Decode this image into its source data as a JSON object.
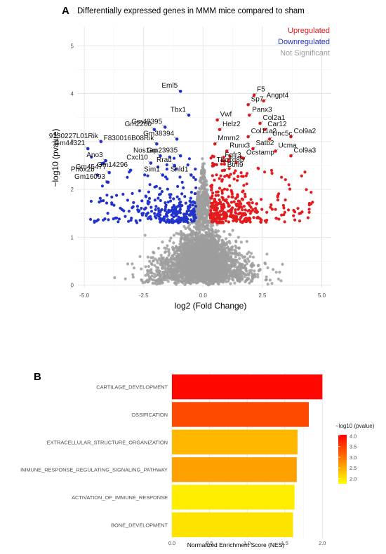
{
  "panel_a": {
    "letter": "A",
    "title": "Differentially expressed genes in MMM mice compared to sham"
  },
  "panel_b": {
    "letter": "B"
  },
  "chart_data": [
    {
      "type": "scatter",
      "title": "Differentially expressed genes in MMM mice compared to sham",
      "xlabel": "log2 (Fold Change)",
      "ylabel": "−log10 (pvalue)",
      "xlim": [
        -5.3,
        5.4
      ],
      "ylim": [
        -0.05,
        5.4
      ],
      "xticks": [
        -5.0,
        -2.5,
        0.0,
        2.5,
        5.0
      ],
      "xtick_labels": [
        "-5.0",
        "-2.5",
        "0.0",
        "2.5",
        "5.0"
      ],
      "yticks": [
        0,
        1,
        2,
        3,
        4,
        5
      ],
      "grid": true,
      "legend": "top-right",
      "series": [
        {
          "name": "Upregulated",
          "color": "#e41a1c"
        },
        {
          "name": "Downregulated",
          "color": "#2233cc"
        },
        {
          "name": "Not Significant",
          "color": "#9e9e9e"
        }
      ],
      "labeled_genes": [
        {
          "gene": "F5",
          "x": 2.15,
          "y": 3.97,
          "group": "Upregulated"
        },
        {
          "gene": "Sp7",
          "x": 1.9,
          "y": 3.77,
          "group": "Upregulated"
        },
        {
          "gene": "Angpt4",
          "x": 2.55,
          "y": 3.85,
          "group": "Upregulated"
        },
        {
          "gene": "Panx3",
          "x": 1.95,
          "y": 3.55,
          "group": "Upregulated"
        },
        {
          "gene": "Col2a1",
          "x": 2.4,
          "y": 3.38,
          "group": "Upregulated"
        },
        {
          "gene": "Car12",
          "x": 2.6,
          "y": 3.25,
          "group": "Upregulated"
        },
        {
          "gene": "Unc5c",
          "x": 2.8,
          "y": 3.05,
          "group": "Upregulated"
        },
        {
          "gene": "Col11a2",
          "x": 1.9,
          "y": 3.1,
          "group": "Upregulated"
        },
        {
          "gene": "Col9a2",
          "x": 3.7,
          "y": 3.1,
          "group": "Upregulated"
        },
        {
          "gene": "Satb2",
          "x": 2.1,
          "y": 2.85,
          "group": "Upregulated"
        },
        {
          "gene": "Ucma",
          "x": 3.05,
          "y": 2.8,
          "group": "Upregulated"
        },
        {
          "gene": "Col9a3",
          "x": 3.7,
          "y": 2.7,
          "group": "Upregulated"
        },
        {
          "gene": "Ocstamp",
          "x": 1.7,
          "y": 2.65,
          "group": "Upregulated"
        },
        {
          "gene": "Vwf",
          "x": 0.6,
          "y": 3.45,
          "group": "Upregulated"
        },
        {
          "gene": "Helz2",
          "x": 0.7,
          "y": 3.25,
          "group": "Upregulated"
        },
        {
          "gene": "Mmrn2",
          "x": 0.5,
          "y": 2.95,
          "group": "Upregulated"
        },
        {
          "gene": "Runx3",
          "x": 1.0,
          "y": 2.8,
          "group": "Upregulated"
        },
        {
          "gene": "Fgfr3",
          "x": 0.8,
          "y": 2.6,
          "group": "Upregulated"
        },
        {
          "gene": "Btnl9",
          "x": 0.9,
          "y": 2.4,
          "group": "Upregulated"
        },
        {
          "gene": "Tbc1d8b",
          "x": 0.45,
          "y": 2.5,
          "group": "Upregulated"
        },
        {
          "gene": "Eml5",
          "x": -0.95,
          "y": 4.05,
          "group": "Downregulated"
        },
        {
          "gene": "Tbx1",
          "x": -0.6,
          "y": 3.55,
          "group": "Downregulated"
        },
        {
          "gene": "Gm2260",
          "x": -2.05,
          "y": 3.25,
          "group": "Downregulated"
        },
        {
          "gene": "Gm48395",
          "x": -1.6,
          "y": 3.3,
          "group": "Downregulated"
        },
        {
          "gene": "Gm38394",
          "x": -1.1,
          "y": 3.05,
          "group": "Downregulated"
        },
        {
          "gene": "9130227L01Rik",
          "x": -4.3,
          "y": 3.0,
          "group": "Downregulated"
        },
        {
          "gene": "F830016B08Rik",
          "x": -1.95,
          "y": 2.95,
          "group": "Downregulated"
        },
        {
          "gene": "Gm44321",
          "x": -4.85,
          "y": 2.85,
          "group": "Downregulated"
        },
        {
          "gene": "Nos1ap",
          "x": -1.8,
          "y": 2.7,
          "group": "Downregulated"
        },
        {
          "gene": "Ano3",
          "x": -4.1,
          "y": 2.6,
          "group": "Downregulated"
        },
        {
          "gene": "Gm23935",
          "x": -0.95,
          "y": 2.7,
          "group": "Downregulated"
        },
        {
          "gene": "Cxcl10",
          "x": -2.2,
          "y": 2.55,
          "group": "Downregulated"
        },
        {
          "gene": "Rrad",
          "x": -1.2,
          "y": 2.5,
          "group": "Downregulated"
        },
        {
          "gene": "Gm45477",
          "x": -3.95,
          "y": 2.35,
          "group": "Downregulated"
        },
        {
          "gene": "Gm14296",
          "x": -3.05,
          "y": 2.4,
          "group": "Downregulated"
        },
        {
          "gene": "Phox2b",
          "x": -4.45,
          "y": 2.3,
          "group": "Downregulated"
        },
        {
          "gene": "Sim1",
          "x": -1.7,
          "y": 2.3,
          "group": "Downregulated"
        },
        {
          "gene": "Shld1",
          "x": -0.5,
          "y": 2.3,
          "group": "Downregulated"
        },
        {
          "gene": "Gm16093",
          "x": -4.0,
          "y": 2.15,
          "group": "Downregulated"
        }
      ],
      "point_clouds": [
        {
          "group": "Upregulated",
          "approx_count": 380,
          "x_range": [
            0.3,
            4.8
          ],
          "y_range": [
            1.3,
            3.0
          ]
        },
        {
          "group": "Downregulated",
          "approx_count": 300,
          "x_range": [
            -4.9,
            -0.3
          ],
          "y_range": [
            1.3,
            3.0
          ]
        },
        {
          "group": "Not Significant",
          "approx_count": 4500,
          "x_range": [
            -4.2,
            4.3
          ],
          "y_range": [
            0.0,
            1.3
          ]
        }
      ]
    },
    {
      "type": "bar",
      "orientation": "horizontal",
      "categories": [
        "CARTILAGE_DEVELOPMENT",
        "OSSIFICATION",
        "EXTRACELLULAR_STRUCTURE_ORGANIZATION",
        "IMMUNE_RESPONSE_REGULATING_SIGNALING_PATHWAY",
        "ACTIVATION_OF_IMMUNE_RESPONSE",
        "BONE_DEVELOPMENT"
      ],
      "values": [
        2.0,
        1.82,
        1.67,
        1.66,
        1.63,
        1.61
      ],
      "color_values": [
        4.0,
        3.4,
        2.4,
        2.6,
        1.9,
        2.0
      ],
      "xlabel": "Normalized Enrichment Score (NES)",
      "xlim": [
        0,
        2.1
      ],
      "xticks": [
        0.0,
        0.5,
        1.0,
        1.5,
        2.0
      ],
      "xtick_labels": [
        "0.0",
        "0.5",
        "1.0",
        "1.5",
        "2.0"
      ],
      "grid": true,
      "colorbar": {
        "title": "−log10 (pvalue)",
        "range": [
          1.75,
          4.05
        ],
        "ticks": [
          "4.0",
          "3.5",
          "3.0",
          "2.5",
          "2.0"
        ],
        "low_color": "#ffff00",
        "high_color": "#ff0000",
        "placement": "right"
      }
    }
  ]
}
